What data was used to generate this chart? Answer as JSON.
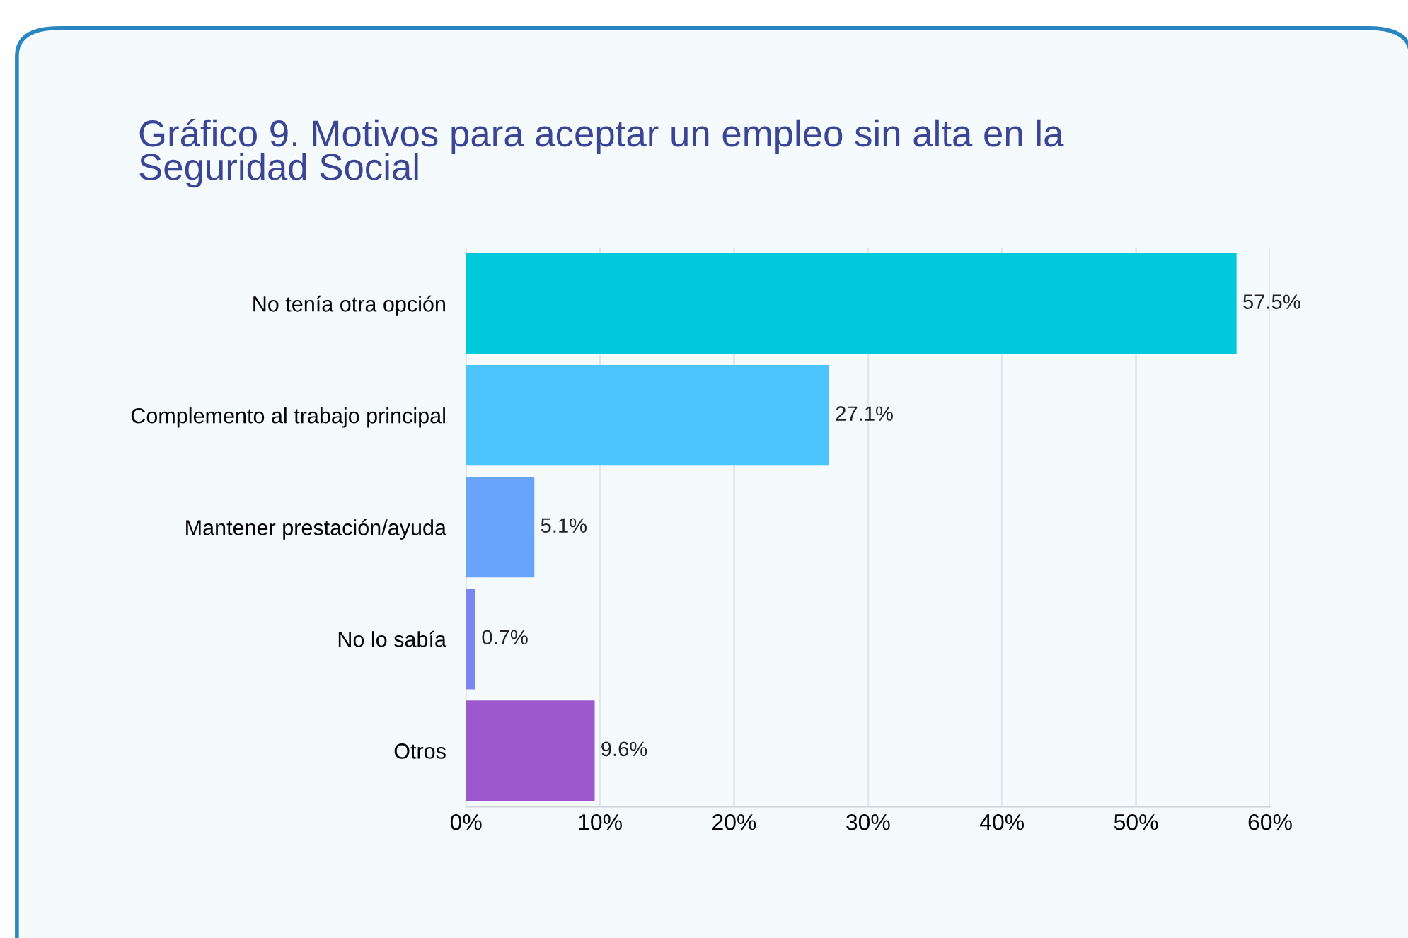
{
  "chart_data": {
    "type": "bar",
    "orientation": "horizontal",
    "title": "Gráfico 9. Motivos para aceptar un empleo sin alta en la\nSeguridad Social",
    "categories": [
      "No tenía otra opción",
      "Complemento al trabajo principal",
      "Mantener prestación/ayuda",
      "No lo sabía",
      "Otros"
    ],
    "values": [
      57.5,
      27.1,
      5.1,
      0.7,
      9.6
    ],
    "colors": [
      "#00c9dc",
      "#4cc4fd",
      "#68a4fb",
      "#7d86ef",
      "#9b58cf"
    ],
    "value_labels": [
      "57.5%",
      "27.1%",
      "5.1%",
      "0.7%",
      "9.6%"
    ],
    "xlim": [
      0,
      60
    ],
    "xticks": [
      {
        "value": 0,
        "label": "0%"
      },
      {
        "value": 10,
        "label": "10%"
      },
      {
        "value": 20,
        "label": "20%"
      },
      {
        "value": 30,
        "label": "30%"
      },
      {
        "value": 40,
        "label": "40%"
      },
      {
        "value": 50,
        "label": "50%"
      },
      {
        "value": 60,
        "label": "60%"
      }
    ],
    "grid": "x",
    "legend": false
  }
}
